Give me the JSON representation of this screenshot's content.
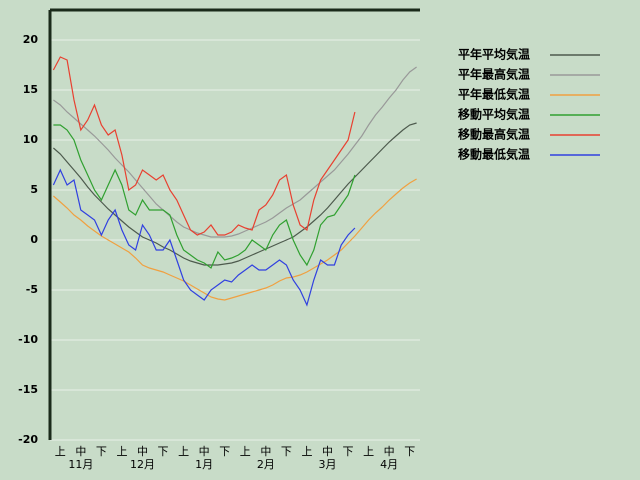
{
  "chart_data": {
    "type": "line",
    "categories": [
      null,
      "上",
      null,
      null,
      "中",
      null,
      null,
      "下",
      null,
      null,
      "上",
      null,
      null,
      "中",
      null,
      null,
      "下",
      null,
      null,
      "上",
      null,
      null,
      "中",
      null,
      null,
      "下",
      null,
      null,
      "上",
      null,
      null,
      "中",
      null,
      null,
      "下",
      null,
      null,
      "上",
      null,
      null,
      "中",
      null,
      null,
      "下",
      null,
      null,
      "上",
      null,
      null,
      "中",
      null,
      null,
      "下",
      null
    ],
    "months": [
      "11月",
      "12月",
      "1月",
      "2月",
      "3月",
      "4月"
    ],
    "ylim": [
      -20,
      23
    ],
    "yticks": [
      -20,
      -15,
      -10,
      -5,
      0,
      5,
      10,
      15,
      20
    ],
    "grid": true,
    "series": [
      {
        "name": "平年平均気温",
        "color": "#4d5a4d",
        "values": [
          9.2,
          8.6,
          7.8,
          7.0,
          6.2,
          5.3,
          4.5,
          3.8,
          3.1,
          2.5,
          1.9,
          1.3,
          0.8,
          0.3,
          0,
          -0.3,
          -0.7,
          -1.0,
          -1.4,
          -1.8,
          -2.1,
          -2.3,
          -2.5,
          -2.5,
          -2.5,
          -2.4,
          -2.3,
          -2.1,
          -1.8,
          -1.5,
          -1.2,
          -0.9,
          -0.6,
          -0.3,
          0,
          0.3,
          0.8,
          1.3,
          1.9,
          2.5,
          3.2,
          4.0,
          4.8,
          5.6,
          6.3,
          7.0,
          7.7,
          8.4,
          9.1,
          9.8,
          10.4,
          11.0,
          11.5,
          11.7
        ]
      },
      {
        "name": "平年最高気温",
        "color": "#999999",
        "values": [
          14.0,
          13.5,
          12.8,
          12.2,
          11.6,
          11.0,
          10.4,
          9.7,
          9.0,
          8.2,
          7.5,
          6.8,
          6.0,
          5.2,
          4.4,
          3.6,
          3.0,
          2.4,
          1.8,
          1.3,
          1.0,
          0.7,
          0.5,
          0.3,
          0.3,
          0.3,
          0.4,
          0.6,
          0.9,
          1.2,
          1.5,
          1.8,
          2.2,
          2.7,
          3.2,
          3.6,
          4.0,
          4.6,
          5.2,
          5.8,
          6.4,
          7.0,
          7.8,
          8.6,
          9.5,
          10.4,
          11.5,
          12.5,
          13.3,
          14.2,
          15.0,
          16.0,
          16.8,
          17.3
        ]
      },
      {
        "name": "平年最低気温",
        "color": "#f0a040",
        "values": [
          4.4,
          3.8,
          3.2,
          2.5,
          2.0,
          1.4,
          0.9,
          0.4,
          0,
          -0.4,
          -0.8,
          -1.2,
          -1.8,
          -2.5,
          -2.8,
          -3.0,
          -3.2,
          -3.5,
          -3.8,
          -4.1,
          -4.5,
          -4.9,
          -5.3,
          -5.7,
          -5.9,
          -6.0,
          -5.8,
          -5.6,
          -5.4,
          -5.2,
          -5.0,
          -4.8,
          -4.5,
          -4.1,
          -3.8,
          -3.7,
          -3.5,
          -3.2,
          -2.8,
          -2.4,
          -2.0,
          -1.5,
          -1.0,
          -0.3,
          0.4,
          1.2,
          2.0,
          2.7,
          3.3,
          4.0,
          4.6,
          5.2,
          5.7,
          6.1
        ]
      },
      {
        "name": "移動平均気温",
        "color": "#30a030",
        "values": [
          11.5,
          11.5,
          11.0,
          10.0,
          8.0,
          6.5,
          5.0,
          4.0,
          5.5,
          7.0,
          5.5,
          3.0,
          2.5,
          4.0,
          3.0,
          3.0,
          3.0,
          2.5,
          0.5,
          -1.0,
          -1.5,
          -2.0,
          -2.3,
          -2.8,
          -1.2,
          -2.0,
          -1.8,
          -1.5,
          -1.0,
          0,
          -0.5,
          -1.0,
          0.5,
          1.5,
          2.0,
          0,
          -1.5,
          -2.5,
          -1.0,
          1.5,
          2.3,
          2.5,
          3.5,
          4.5,
          6.5,
          null,
          null,
          null,
          null,
          null,
          null,
          null,
          null,
          null
        ]
      },
      {
        "name": "移動最高気温",
        "color": "#e84030",
        "values": [
          17.0,
          18.3,
          18.0,
          14.0,
          11.0,
          12.0,
          13.5,
          11.5,
          10.5,
          11.0,
          8.5,
          5.0,
          5.5,
          7.0,
          6.5,
          6.0,
          6.5,
          5.0,
          4.0,
          2.5,
          1.0,
          0.5,
          0.8,
          1.5,
          0.5,
          0.5,
          0.8,
          1.5,
          1.2,
          1.0,
          3.0,
          3.5,
          4.5,
          6.0,
          6.5,
          3.5,
          1.5,
          1.0,
          4.0,
          6.0,
          7.0,
          8.0,
          9.0,
          10.0,
          12.8,
          null,
          null,
          null,
          null,
          null,
          null,
          null,
          null,
          null
        ]
      },
      {
        "name": "移動最低気温",
        "color": "#3040e0",
        "values": [
          5.5,
          7.0,
          5.5,
          6.0,
          3.0,
          2.5,
          2.0,
          0.5,
          2.0,
          3.0,
          1.0,
          -0.5,
          -1.0,
          1.5,
          0.5,
          -1.0,
          -1.0,
          0,
          -2.0,
          -4.0,
          -5.0,
          -5.5,
          -6.0,
          -5.0,
          -4.5,
          -4.0,
          -4.2,
          -3.5,
          -3.0,
          -2.5,
          -3.0,
          -3.0,
          -2.5,
          -2.0,
          -2.5,
          -4.0,
          -5.0,
          -6.5,
          -4.0,
          -2.0,
          -2.5,
          -2.5,
          -0.5,
          0.5,
          1.2,
          null,
          null,
          null,
          null,
          null,
          null,
          null,
          null,
          null
        ]
      }
    ]
  }
}
